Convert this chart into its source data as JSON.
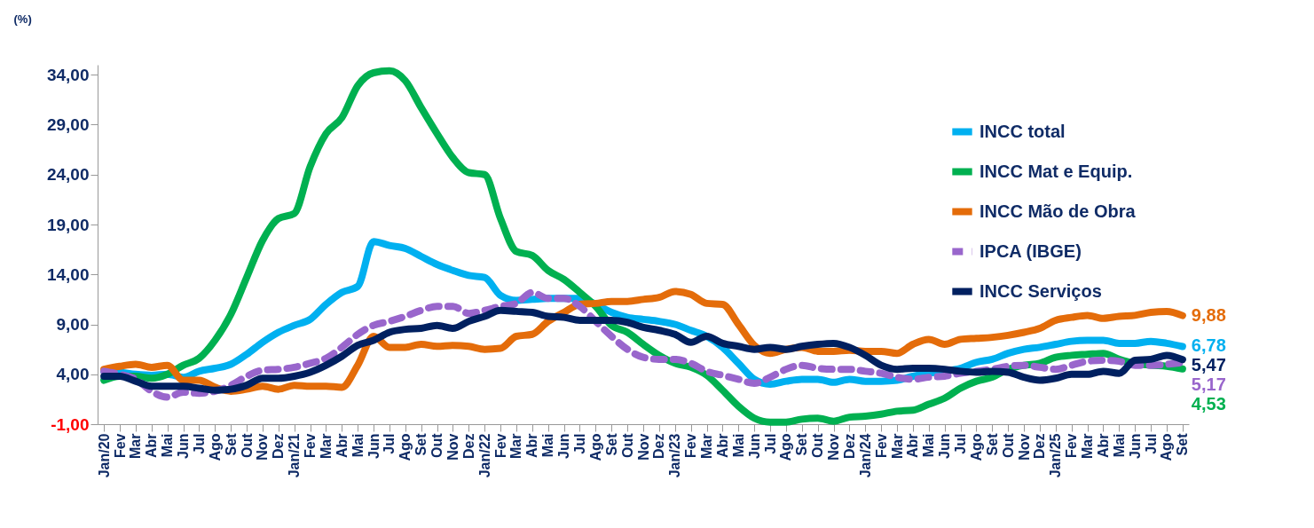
{
  "chart_data": {
    "type": "line",
    "ylabel": "(%)",
    "categories": [
      "Jan/20",
      "Fev",
      "Mar",
      "Abr",
      "Mai",
      "Jun",
      "Jul",
      "Ago",
      "Set",
      "Out",
      "Nov",
      "Dez",
      "Jan/21",
      "Fev",
      "Mar",
      "Abr",
      "Mai",
      "Jun",
      "Jul",
      "Ago",
      "Set",
      "Out",
      "Nov",
      "Dez",
      "Jan/22",
      "Fev",
      "Mar",
      "Abr",
      "Mai",
      "Jun",
      "Jul",
      "Ago",
      "Set",
      "Out",
      "Nov",
      "Dez",
      "Jan/23",
      "Fev",
      "Mar",
      "Abr",
      "Mai",
      "Jun",
      "Jul",
      "Ago",
      "Set",
      "Out",
      "Nov",
      "Dez",
      "Jan/24",
      "Fev",
      "Mar",
      "Abr",
      "Mai",
      "Jun",
      "Jul",
      "Ago",
      "Set",
      "Out",
      "Nov",
      "Dez",
      "Jan/25",
      "Fev",
      "Mar",
      "Abr",
      "Mai",
      "Jun",
      "Jul",
      "Ago",
      "Set"
    ],
    "ylim": [
      -1,
      35
    ],
    "yticks": [
      {
        "value": -1,
        "label": "-1,00"
      },
      {
        "value": 4,
        "label": "4,00"
      },
      {
        "value": 9,
        "label": "9,00"
      },
      {
        "value": 14,
        "label": "14,00"
      },
      {
        "value": 19,
        "label": "19,00"
      },
      {
        "value": 24,
        "label": "24,00"
      },
      {
        "value": 29,
        "label": "29,00"
      },
      {
        "value": 34,
        "label": "34,00"
      }
    ],
    "grid": false,
    "legend": "top right",
    "series": [
      {
        "name": "INCC total",
        "color": "#00b0f0",
        "line_style": "solid",
        "values": [
          4.3,
          4.2,
          4.0,
          3.9,
          4.0,
          3.7,
          4.3,
          4.6,
          5.0,
          6.0,
          7.2,
          8.2,
          8.9,
          9.5,
          11.0,
          12.2,
          12.8,
          17.3,
          16.9,
          16.6,
          15.8,
          15.0,
          14.4,
          13.9,
          13.7,
          11.9,
          11.4,
          11.5,
          11.6,
          11.6,
          11.6,
          11.0,
          10.2,
          9.7,
          9.5,
          9.3,
          9.0,
          8.4,
          7.8,
          6.7,
          5.1,
          3.5,
          3.0,
          3.3,
          3.5,
          3.5,
          3.2,
          3.5,
          3.3,
          3.3,
          3.4,
          3.8,
          4.1,
          4.3,
          4.6,
          5.2,
          5.5,
          6.1,
          6.5,
          6.7,
          7.0,
          7.3,
          7.4,
          7.4,
          7.1,
          7.1,
          7.3,
          7.1,
          6.78
        ],
        "value_labels": [
          null,
          null,
          null,
          null,
          null,
          null,
          null,
          null,
          null,
          null,
          null,
          null,
          null,
          null,
          null,
          null,
          null,
          null,
          null,
          null,
          null,
          null,
          null,
          null,
          null,
          null,
          null,
          null,
          null,
          null,
          null,
          null,
          null,
          null,
          null,
          null,
          null,
          null,
          null,
          null,
          null,
          null,
          null,
          null,
          null,
          null,
          null,
          null,
          null,
          null,
          null,
          null,
          null,
          null,
          null,
          null,
          null,
          null,
          null,
          null,
          null,
          null,
          null,
          null,
          null,
          null,
          null,
          null,
          "6,78"
        ]
      },
      {
        "name": "INCC Mat e Equip.",
        "color": "#00b050",
        "line_style": "solid",
        "values": [
          3.4,
          3.8,
          3.8,
          3.6,
          4.0,
          4.9,
          5.6,
          7.4,
          10.0,
          13.7,
          17.4,
          19.6,
          20.1,
          24.8,
          28.1,
          29.7,
          32.9,
          34.2,
          34.4,
          33.4,
          30.7,
          28.1,
          25.7,
          24.2,
          24.0,
          19.6,
          16.3,
          15.9,
          14.4,
          13.5,
          12.2,
          10.8,
          8.9,
          8.2,
          7.0,
          5.9,
          5.1,
          4.7,
          3.9,
          2.4,
          0.8,
          -0.4,
          -0.8,
          -0.8,
          -0.5,
          -0.4,
          -0.7,
          -0.3,
          -0.2,
          0.0,
          0.3,
          0.4,
          1.0,
          1.6,
          2.6,
          3.3,
          3.7,
          4.5,
          4.9,
          5.1,
          5.7,
          5.9,
          6.0,
          6.1,
          5.5,
          5.1,
          4.9,
          4.8,
          4.53
        ],
        "value_labels": [
          null,
          null,
          null,
          null,
          null,
          null,
          null,
          null,
          null,
          null,
          null,
          null,
          null,
          null,
          null,
          null,
          null,
          null,
          null,
          null,
          null,
          null,
          null,
          null,
          null,
          null,
          null,
          null,
          null,
          null,
          null,
          null,
          null,
          null,
          null,
          null,
          null,
          null,
          null,
          null,
          null,
          null,
          null,
          null,
          null,
          null,
          null,
          null,
          null,
          null,
          null,
          null,
          null,
          null,
          null,
          null,
          null,
          null,
          null,
          null,
          null,
          null,
          null,
          null,
          null,
          null,
          null,
          null,
          "4,53"
        ]
      },
      {
        "name": "INCC Mão de Obra",
        "color": "#e46c0a",
        "line_style": "solid",
        "values": [
          4.5,
          4.8,
          5.0,
          4.7,
          4.9,
          3.4,
          3.4,
          2.7,
          2.3,
          2.5,
          2.8,
          2.5,
          2.9,
          2.8,
          2.8,
          2.7,
          4.9,
          7.8,
          6.7,
          6.7,
          7.0,
          6.8,
          6.9,
          6.8,
          6.5,
          6.6,
          7.8,
          8.0,
          9.3,
          10.2,
          11.0,
          11.1,
          11.3,
          11.3,
          11.5,
          11.7,
          12.3,
          12.0,
          11.1,
          11.0,
          9.0,
          6.9,
          6.1,
          6.5,
          6.7,
          6.3,
          6.3,
          6.4,
          6.3,
          6.3,
          6.1,
          7.0,
          7.5,
          7.0,
          7.5,
          7.6,
          7.7,
          7.9,
          8.2,
          8.6,
          9.4,
          9.7,
          9.9,
          9.6,
          9.8,
          9.9,
          10.2,
          10.3,
          9.88
        ],
        "value_labels": [
          null,
          null,
          null,
          null,
          null,
          null,
          null,
          null,
          null,
          null,
          null,
          null,
          null,
          null,
          null,
          null,
          null,
          null,
          null,
          null,
          null,
          null,
          null,
          null,
          null,
          null,
          null,
          null,
          null,
          null,
          null,
          null,
          null,
          null,
          null,
          null,
          null,
          null,
          null,
          null,
          null,
          null,
          null,
          null,
          null,
          null,
          null,
          null,
          null,
          null,
          null,
          null,
          null,
          null,
          null,
          null,
          null,
          null,
          null,
          null,
          null,
          null,
          null,
          null,
          null,
          null,
          null,
          null,
          "9,88"
        ]
      },
      {
        "name": "IPCA (IBGE)",
        "color": "#9966cc",
        "line_style": "dashed",
        "values": [
          4.3,
          4.0,
          3.5,
          2.3,
          1.7,
          2.2,
          2.1,
          2.3,
          2.9,
          3.8,
          4.4,
          4.5,
          4.7,
          5.1,
          5.6,
          6.7,
          8.0,
          8.9,
          9.3,
          9.8,
          10.4,
          10.8,
          10.8,
          10.1,
          10.4,
          10.8,
          11.1,
          12.2,
          11.6,
          11.6,
          10.8,
          9.3,
          7.8,
          6.5,
          5.7,
          5.5,
          5.5,
          5.1,
          4.3,
          3.9,
          3.5,
          3.1,
          3.7,
          4.5,
          4.9,
          4.6,
          4.5,
          4.5,
          4.3,
          4.1,
          3.7,
          3.5,
          3.7,
          3.8,
          4.1,
          4.3,
          4.5,
          4.8,
          4.9,
          4.7,
          4.5,
          4.9,
          5.3,
          5.4,
          5.3,
          4.9,
          4.9,
          5.0,
          5.17
        ],
        "value_labels": [
          null,
          null,
          null,
          null,
          null,
          null,
          null,
          null,
          null,
          null,
          null,
          null,
          null,
          null,
          null,
          null,
          null,
          null,
          null,
          null,
          null,
          null,
          null,
          null,
          null,
          null,
          null,
          null,
          null,
          null,
          null,
          null,
          null,
          null,
          null,
          null,
          null,
          null,
          null,
          null,
          null,
          null,
          null,
          null,
          null,
          null,
          null,
          null,
          null,
          null,
          null,
          null,
          null,
          null,
          null,
          null,
          null,
          null,
          null,
          null,
          null,
          null,
          null,
          null,
          null,
          null,
          null,
          null,
          "5,17"
        ]
      },
      {
        "name": "INCC Serviços",
        "color": "#002060",
        "line_style": "solid",
        "values": [
          3.8,
          3.8,
          3.3,
          2.8,
          2.8,
          2.8,
          2.6,
          2.4,
          2.5,
          2.9,
          3.6,
          3.6,
          3.8,
          4.2,
          4.9,
          5.8,
          6.9,
          7.4,
          8.2,
          8.5,
          8.6,
          8.9,
          8.6,
          9.3,
          9.8,
          10.4,
          10.3,
          10.2,
          9.8,
          9.7,
          9.4,
          9.4,
          9.4,
          9.2,
          8.7,
          8.4,
          8.0,
          7.2,
          7.8,
          7.1,
          6.8,
          6.5,
          6.7,
          6.5,
          6.8,
          7.0,
          7.1,
          6.7,
          5.9,
          4.9,
          4.5,
          4.6,
          4.6,
          4.5,
          4.3,
          4.2,
          4.3,
          4.2,
          3.7,
          3.4,
          3.6,
          4.0,
          4.0,
          4.3,
          4.1,
          5.4,
          5.5,
          5.9,
          5.47
        ],
        "value_labels": [
          null,
          null,
          null,
          null,
          null,
          null,
          null,
          null,
          null,
          null,
          null,
          null,
          null,
          null,
          null,
          null,
          null,
          null,
          null,
          null,
          null,
          null,
          null,
          null,
          null,
          null,
          null,
          null,
          null,
          null,
          null,
          null,
          null,
          null,
          null,
          null,
          null,
          null,
          null,
          null,
          null,
          null,
          null,
          null,
          null,
          null,
          null,
          null,
          null,
          null,
          null,
          null,
          null,
          null,
          null,
          null,
          null,
          null,
          null,
          null,
          null,
          null,
          null,
          null,
          null,
          null,
          null,
          null,
          "5,47"
        ]
      }
    ]
  }
}
